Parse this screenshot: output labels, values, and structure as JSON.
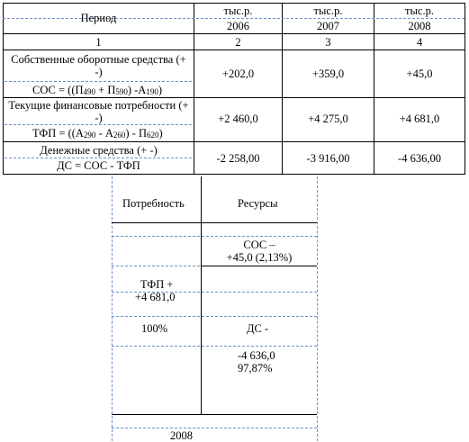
{
  "table": {
    "period_label": "Период",
    "unit": "тыс.р.",
    "years": [
      "2006",
      "2007",
      "2008"
    ],
    "col_numbers": [
      "1",
      "2",
      "3",
      "4"
    ],
    "rows": [
      {
        "title": "Собственные оборотные средства (+ -)",
        "formula": {
          "pre": "СОС = ((П",
          "s1": "490",
          "m1": " + П",
          "s2": "590",
          "m2": ") -А",
          "s3": "190",
          "post": ")"
        },
        "values": [
          "+202,0",
          "+359,0",
          "+45,0"
        ]
      },
      {
        "title": "Текущие финансовые потребности (+ -)",
        "formula": {
          "pre": "ТФП = ((А",
          "s1": "290",
          "m1": " - А",
          "s2": "260",
          "m2": ") - П",
          "s3": "620",
          "post": ")"
        },
        "values": [
          "+2 460,0",
          "+4 275,0",
          "+4 681,0"
        ]
      },
      {
        "title": "Денежные средства (+ -)",
        "formula_text": "ДС = СОС - ТФП",
        "values": [
          "-2 258,00",
          "-3 916,00",
          "-4 636,00"
        ]
      }
    ]
  },
  "diagram": {
    "col_left": "Потребность",
    "col_right": "Ресурсы",
    "sos_label": "СОС –",
    "sos_value": "+45,0 (2,13%)",
    "tfp_label": "ТФП +",
    "tfp_value": "+4 681,0",
    "tfp_percent": "100%",
    "ds_label": "ДС -",
    "ds_value": "-4 636,0",
    "ds_percent": "97,87%",
    "year": "2008"
  }
}
